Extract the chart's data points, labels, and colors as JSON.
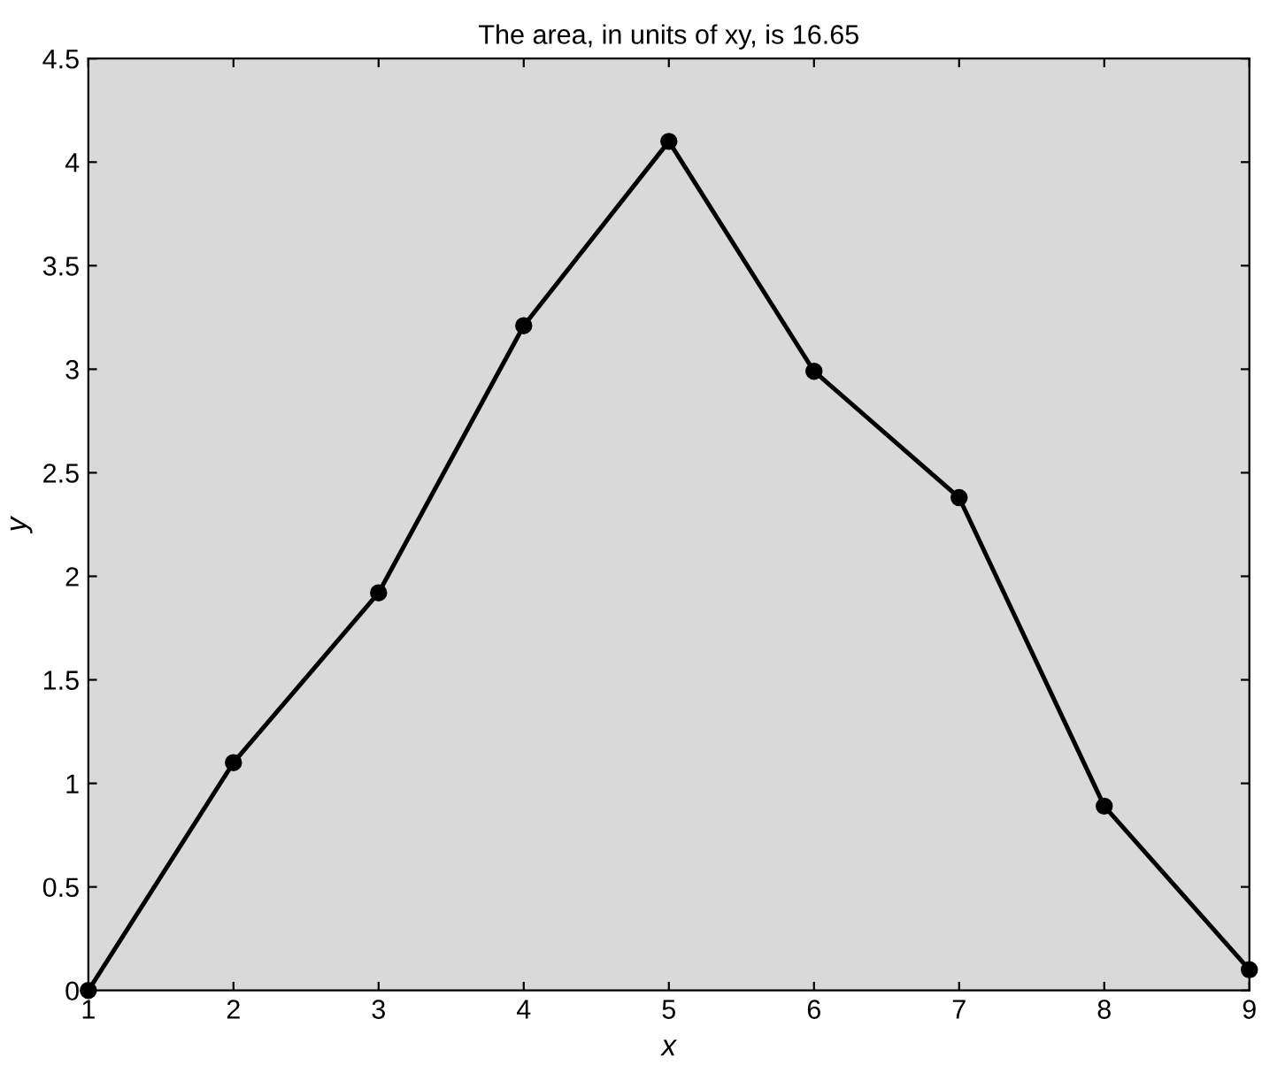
{
  "chart_data": {
    "type": "line",
    "title": "The area, in units of xy, is 16.65",
    "xlabel": "x",
    "ylabel": "y",
    "x": [
      1,
      2,
      3,
      4,
      5,
      6,
      7,
      8,
      9
    ],
    "series": [
      {
        "color": "#000000",
        "values": [
          0,
          1.1,
          1.92,
          3.21,
          4.1,
          2.99,
          2.38,
          0.89,
          0.1
        ]
      }
    ],
    "xlim": [
      1,
      9
    ],
    "xticks": [
      1,
      2,
      3,
      4,
      5,
      6,
      7,
      8,
      9
    ],
    "ylim": [
      0,
      4.5
    ],
    "yticks": [
      0,
      0.5,
      1,
      1.5,
      2,
      2.5,
      3,
      3.5,
      4,
      4.5
    ],
    "marker": "circle",
    "line_style": "solid",
    "grid": false,
    "legend": false
  }
}
